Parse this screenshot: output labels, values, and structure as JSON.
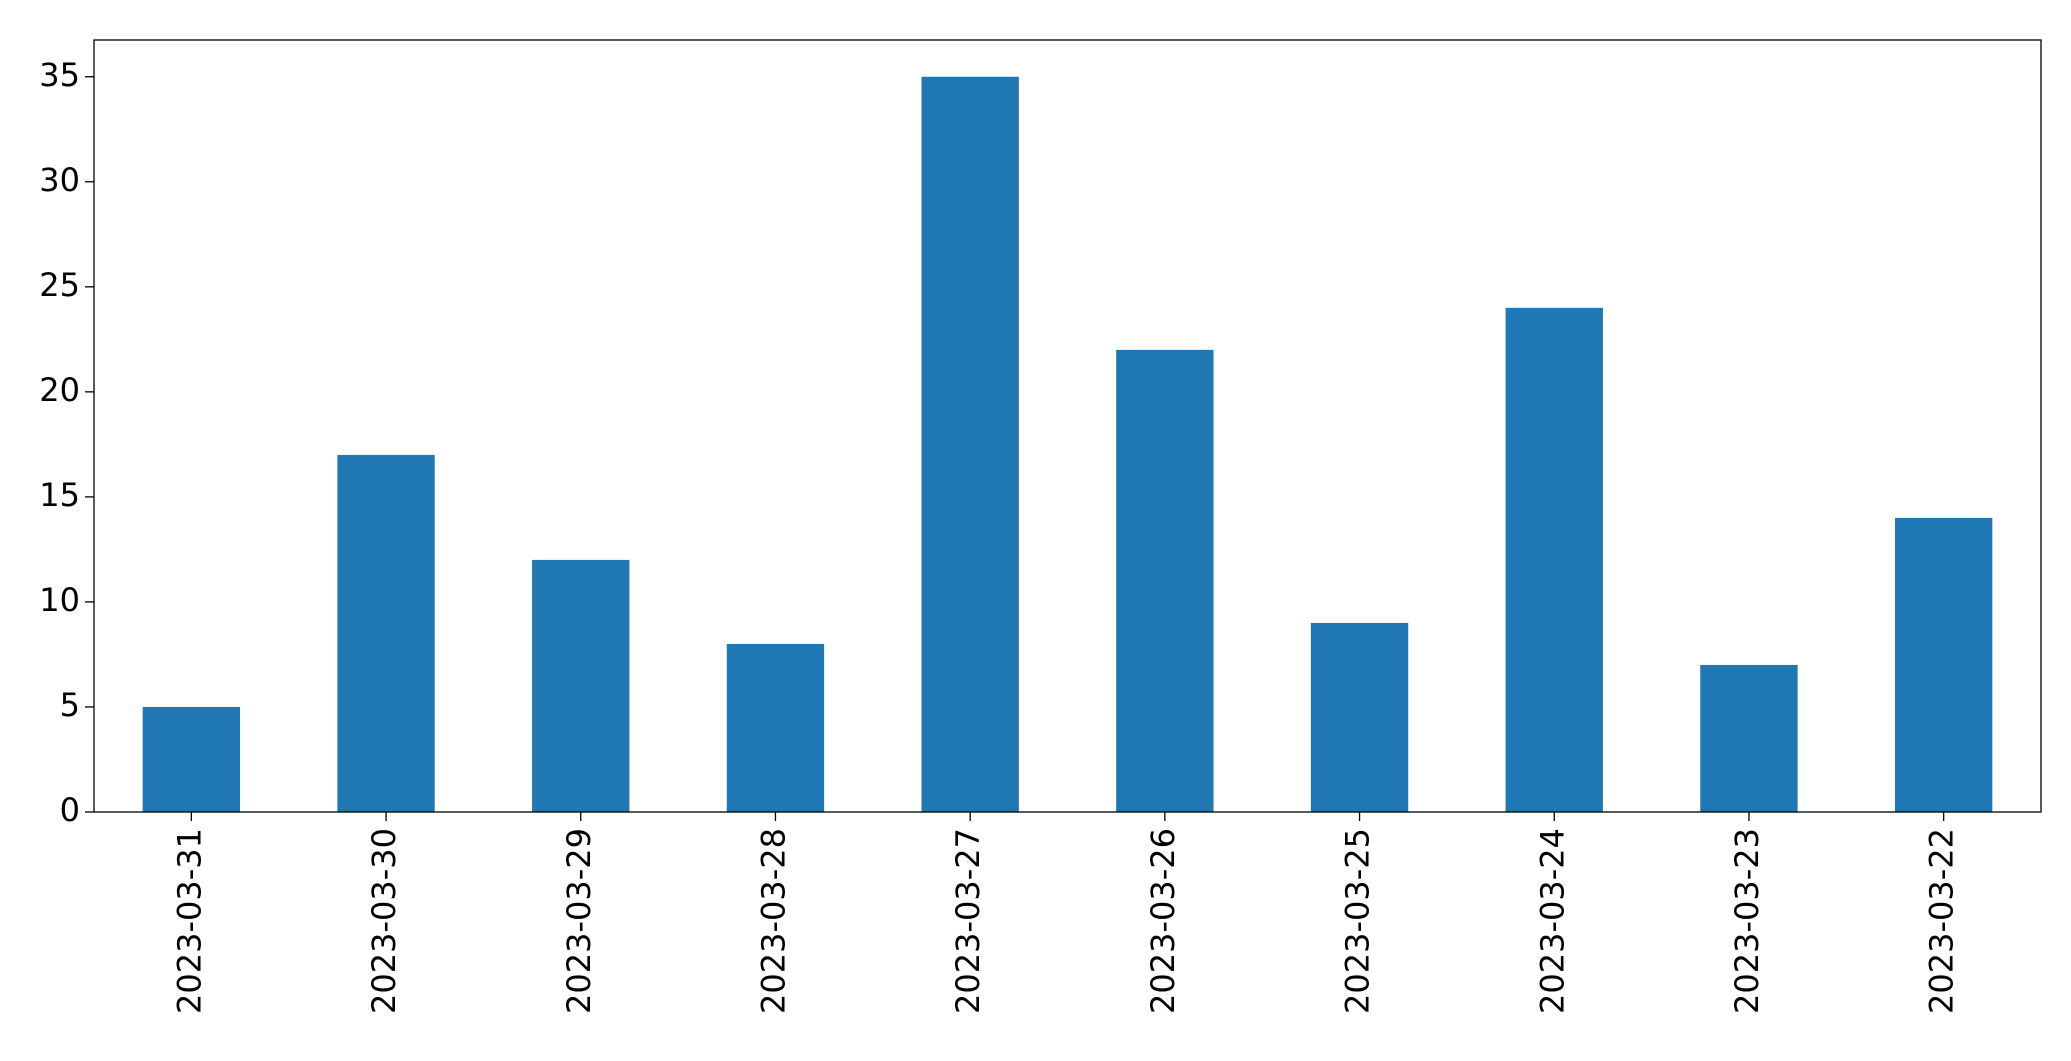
{
  "chart_data": {
    "type": "bar",
    "categories": [
      "2023-03-31",
      "2023-03-30",
      "2023-03-29",
      "2023-03-28",
      "2023-03-27",
      "2023-03-26",
      "2023-03-25",
      "2023-03-24",
      "2023-03-23",
      "2023-03-22"
    ],
    "values": [
      5,
      17,
      12,
      8,
      35,
      22,
      9,
      24,
      7,
      14
    ],
    "color": "#1f77b4",
    "ylim": [
      0,
      36.75
    ],
    "yticks": [
      0,
      5,
      10,
      15,
      20,
      25,
      30,
      35
    ],
    "grid": false
  }
}
